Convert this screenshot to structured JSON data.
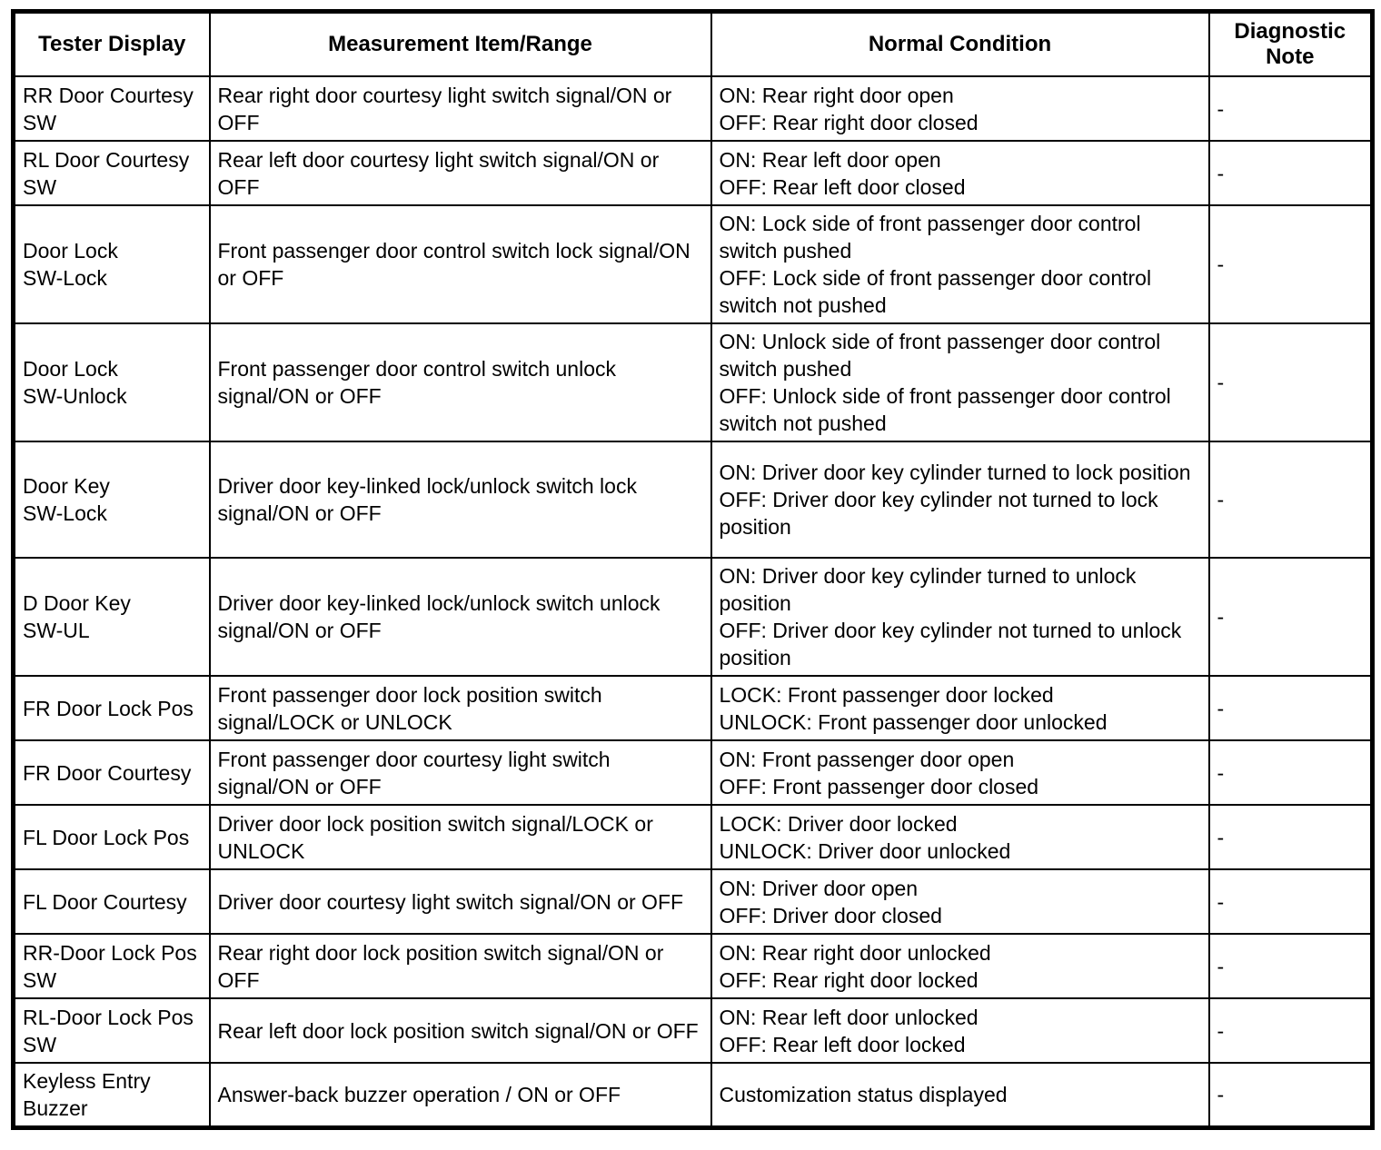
{
  "table": {
    "headers": [
      "Tester Display",
      "Measurement Item/Range",
      "Normal Condition",
      "Diagnostic\nNote"
    ],
    "rows": [
      {
        "size": "row-2l",
        "tester_display": "RR Door Courtesy\nSW",
        "measurement": "Rear right door courtesy light switch signal/ON or OFF",
        "normal_condition": "ON: Rear right door open\nOFF: Rear right door closed",
        "diagnostic_note": "-"
      },
      {
        "size": "row-2l",
        "tester_display": "RL Door Courtesy\nSW",
        "measurement": "Rear left door courtesy light switch signal/ON or OFF",
        "normal_condition": "ON: Rear left door open\nOFF: Rear left door closed",
        "diagnostic_note": "-"
      },
      {
        "size": "row-4l",
        "tester_display": "Door Lock\nSW-Lock",
        "measurement": "Front passenger door control switch lock signal/ON or OFF",
        "normal_condition": "ON: Lock side of front passenger door control switch pushed\nOFF: Lock side of front passenger door control switch not pushed",
        "diagnostic_note": "-"
      },
      {
        "size": "row-4l",
        "tester_display": "Door Lock\nSW-Unlock",
        "measurement": "Front passenger door control switch unlock signal/ON or OFF",
        "normal_condition": "ON: Unlock side of front passenger door control switch pushed\nOFF: Unlock side of front passenger door control switch not pushed",
        "diagnostic_note": "-"
      },
      {
        "size": "row-4l",
        "tester_display": "Door Key\nSW-Lock",
        "measurement": "Driver door key-linked lock/unlock switch lock signal/ON or OFF",
        "normal_condition": "ON: Driver door key cylinder turned to lock position\nOFF: Driver door key cylinder not turned to lock position",
        "diagnostic_note": "-"
      },
      {
        "size": "row-4l",
        "tester_display": "D Door Key\nSW-UL",
        "measurement": "Driver door key-linked lock/unlock switch unlock signal/ON or OFF",
        "normal_condition": "ON: Driver door key cylinder turned to unlock position\nOFF: Driver door key cylinder not turned to unlock position",
        "diagnostic_note": "-"
      },
      {
        "size": "row-2l",
        "tester_display": "FR Door Lock Pos",
        "measurement": "Front passenger door lock position switch signal/LOCK or UNLOCK",
        "normal_condition": "LOCK: Front passenger door locked\nUNLOCK: Front passenger door unlocked",
        "diagnostic_note": "-"
      },
      {
        "size": "row-2l",
        "tester_display": "FR Door Courtesy",
        "measurement": "Front passenger door courtesy light switch signal/ON or OFF",
        "normal_condition": "ON: Front passenger door open\nOFF: Front passenger door closed",
        "diagnostic_note": "-"
      },
      {
        "size": "row-2l",
        "tester_display": "FL Door Lock Pos",
        "measurement": "Driver door lock position switch signal/LOCK or UNLOCK",
        "normal_condition": "LOCK: Driver door locked\nUNLOCK: Driver door unlocked",
        "diagnostic_note": "-"
      },
      {
        "size": "row-2l",
        "tester_display": "FL Door Courtesy",
        "measurement": "Driver door courtesy light switch signal/ON or OFF",
        "normal_condition": "ON: Driver door open\nOFF: Driver door closed",
        "diagnostic_note": "-"
      },
      {
        "size": "row-2l",
        "tester_display": "RR-Door Lock Pos\nSW",
        "measurement": "Rear right door lock position switch signal/ON or OFF",
        "normal_condition": "ON: Rear right door unlocked\nOFF: Rear right door locked",
        "diagnostic_note": "-"
      },
      {
        "size": "row-2l",
        "tester_display": "RL-Door Lock Pos\nSW",
        "measurement": "Rear left door lock position switch signal/ON or OFF",
        "normal_condition": "ON: Rear left door unlocked\nOFF: Rear left door locked",
        "diagnostic_note": "-"
      },
      {
        "size": "row-2l",
        "tester_display": "Keyless Entry\nBuzzer",
        "measurement": "Answer-back buzzer operation / ON or OFF",
        "normal_condition": "Customization status displayed",
        "diagnostic_note": "-"
      }
    ]
  }
}
